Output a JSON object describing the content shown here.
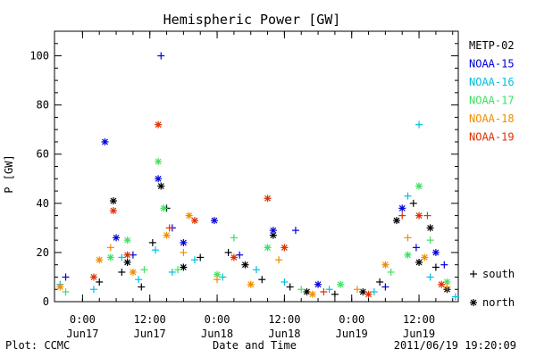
{
  "chart_data": {
    "type": "scatter",
    "title": "Hemispheric Power [GW]",
    "xlabel": "Date and Time",
    "ylabel": "P [GW]",
    "ylim": [
      0,
      110
    ],
    "xlim": [
      "2011-06-16 19:00",
      "2011-06-19 19:00"
    ],
    "y_ticks": [
      0,
      20,
      40,
      60,
      80,
      100
    ],
    "x_ticks": [
      {
        "time": "2011-06-17 00:00",
        "line1": "0:00",
        "line2": "Jun17"
      },
      {
        "time": "2011-06-17 12:00",
        "line1": "12:00",
        "line2": "Jun17"
      },
      {
        "time": "2011-06-18 00:00",
        "line1": "0:00",
        "line2": "Jun18"
      },
      {
        "time": "2011-06-18 12:00",
        "line1": "12:00",
        "line2": "Jun18"
      },
      {
        "time": "2011-06-19 00:00",
        "line1": "0:00",
        "line2": "Jun19"
      },
      {
        "time": "2011-06-19 12:00",
        "line1": "12:00",
        "line2": "Jun19"
      }
    ],
    "grid": false,
    "legend_placement": "right",
    "markers_legend": [
      {
        "symbol": "+",
        "label": "south"
      },
      {
        "symbol": "*",
        "label": "north"
      }
    ],
    "series": [
      {
        "name": "METP-02",
        "color": "#000000",
        "points": [
          {
            "x": "2011-06-17 03:00",
            "y": 8,
            "m": "+"
          },
          {
            "x": "2011-06-17 05:30",
            "y": 41,
            "m": "*"
          },
          {
            "x": "2011-06-17 07:00",
            "y": 12,
            "m": "+"
          },
          {
            "x": "2011-06-17 08:00",
            "y": 16,
            "m": "*"
          },
          {
            "x": "2011-06-17 10:30",
            "y": 6,
            "m": "+"
          },
          {
            "x": "2011-06-17 12:30",
            "y": 24,
            "m": "+"
          },
          {
            "x": "2011-06-17 14:00",
            "y": 47,
            "m": "*"
          },
          {
            "x": "2011-06-17 15:00",
            "y": 38,
            "m": "+"
          },
          {
            "x": "2011-06-17 18:00",
            "y": 14,
            "m": "*"
          },
          {
            "x": "2011-06-17 21:00",
            "y": 18,
            "m": "+"
          },
          {
            "x": "2011-06-18 02:00",
            "y": 20,
            "m": "+"
          },
          {
            "x": "2011-06-18 05:00",
            "y": 15,
            "m": "*"
          },
          {
            "x": "2011-06-18 08:00",
            "y": 9,
            "m": "+"
          },
          {
            "x": "2011-06-18 10:00",
            "y": 27,
            "m": "*"
          },
          {
            "x": "2011-06-18 13:00",
            "y": 6,
            "m": "+"
          },
          {
            "x": "2011-06-18 16:00",
            "y": 4,
            "m": "*"
          },
          {
            "x": "2011-06-18 21:00",
            "y": 3,
            "m": "+"
          },
          {
            "x": "2011-06-19 02:00",
            "y": 4,
            "m": "*"
          },
          {
            "x": "2011-06-19 05:00",
            "y": 8,
            "m": "+"
          },
          {
            "x": "2011-06-19 08:00",
            "y": 33,
            "m": "*"
          },
          {
            "x": "2011-06-19 11:00",
            "y": 40,
            "m": "+"
          },
          {
            "x": "2011-06-19 12:00",
            "y": 16,
            "m": "*"
          },
          {
            "x": "2011-06-19 14:00",
            "y": 30,
            "m": "*"
          },
          {
            "x": "2011-06-19 15:00",
            "y": 14,
            "m": "+"
          },
          {
            "x": "2011-06-19 17:00",
            "y": 5,
            "m": "*"
          }
        ]
      },
      {
        "name": "NOAA-15",
        "color": "#0000dd",
        "points": [
          {
            "x": "2011-06-16 21:00",
            "y": 10,
            "m": "+"
          },
          {
            "x": "2011-06-17 04:00",
            "y": 65,
            "m": "*"
          },
          {
            "x": "2011-06-17 06:00",
            "y": 26,
            "m": "*"
          },
          {
            "x": "2011-06-17 09:00",
            "y": 19,
            "m": "+"
          },
          {
            "x": "2011-06-17 14:00",
            "y": 100,
            "m": "+"
          },
          {
            "x": "2011-06-17 13:30",
            "y": 50,
            "m": "*"
          },
          {
            "x": "2011-06-17 16:00",
            "y": 30,
            "m": "+"
          },
          {
            "x": "2011-06-17 18:00",
            "y": 24,
            "m": "*"
          },
          {
            "x": "2011-06-17 23:30",
            "y": 33,
            "m": "*"
          },
          {
            "x": "2011-06-18 04:00",
            "y": 19,
            "m": "+"
          },
          {
            "x": "2011-06-18 10:00",
            "y": 29,
            "m": "*"
          },
          {
            "x": "2011-06-18 14:00",
            "y": 29,
            "m": "+"
          },
          {
            "x": "2011-06-18 18:00",
            "y": 7,
            "m": "*"
          },
          {
            "x": "2011-06-19 06:00",
            "y": 6,
            "m": "+"
          },
          {
            "x": "2011-06-19 09:00",
            "y": 38,
            "m": "*"
          },
          {
            "x": "2011-06-19 11:30",
            "y": 22,
            "m": "+"
          },
          {
            "x": "2011-06-19 15:00",
            "y": 20,
            "m": "*"
          },
          {
            "x": "2011-06-19 16:30",
            "y": 15,
            "m": "+"
          }
        ]
      },
      {
        "name": "NOAA-16",
        "color": "#00c0e0",
        "points": [
          {
            "x": "2011-06-16 20:00",
            "y": 7,
            "m": "+"
          },
          {
            "x": "2011-06-17 02:00",
            "y": 5,
            "m": "+"
          },
          {
            "x": "2011-06-17 07:00",
            "y": 18,
            "m": "+"
          },
          {
            "x": "2011-06-17 10:00",
            "y": 9,
            "m": "+"
          },
          {
            "x": "2011-06-17 13:00",
            "y": 21,
            "m": "+"
          },
          {
            "x": "2011-06-17 16:00",
            "y": 12,
            "m": "+"
          },
          {
            "x": "2011-06-17 20:00",
            "y": 17,
            "m": "+"
          },
          {
            "x": "2011-06-18 01:00",
            "y": 10,
            "m": "+"
          },
          {
            "x": "2011-06-18 07:00",
            "y": 13,
            "m": "+"
          },
          {
            "x": "2011-06-18 12:00",
            "y": 8,
            "m": "+"
          },
          {
            "x": "2011-06-18 20:00",
            "y": 5,
            "m": "+"
          },
          {
            "x": "2011-06-19 04:00",
            "y": 4,
            "m": "+"
          },
          {
            "x": "2011-06-19 10:00",
            "y": 43,
            "m": "+"
          },
          {
            "x": "2011-06-19 12:00",
            "y": 72,
            "m": "+"
          },
          {
            "x": "2011-06-19 14:00",
            "y": 10,
            "m": "+"
          },
          {
            "x": "2011-06-19 18:30",
            "y": 2,
            "m": "+"
          }
        ]
      },
      {
        "name": "NOAA-17",
        "color": "#40e060",
        "points": [
          {
            "x": "2011-06-16 21:00",
            "y": 4,
            "m": "+"
          },
          {
            "x": "2011-06-17 05:00",
            "y": 18,
            "m": "*"
          },
          {
            "x": "2011-06-17 08:00",
            "y": 25,
            "m": "*"
          },
          {
            "x": "2011-06-17 11:00",
            "y": 13,
            "m": "+"
          },
          {
            "x": "2011-06-17 13:30",
            "y": 57,
            "m": "*"
          },
          {
            "x": "2011-06-17 14:30",
            "y": 38,
            "m": "*"
          },
          {
            "x": "2011-06-17 17:00",
            "y": 13,
            "m": "+"
          },
          {
            "x": "2011-06-18 00:00",
            "y": 11,
            "m": "*"
          },
          {
            "x": "2011-06-18 03:00",
            "y": 26,
            "m": "+"
          },
          {
            "x": "2011-06-18 09:00",
            "y": 22,
            "m": "*"
          },
          {
            "x": "2011-06-18 15:00",
            "y": 5,
            "m": "+"
          },
          {
            "x": "2011-06-18 22:00",
            "y": 7,
            "m": "*"
          },
          {
            "x": "2011-06-19 07:00",
            "y": 12,
            "m": "+"
          },
          {
            "x": "2011-06-19 10:00",
            "y": 19,
            "m": "*"
          },
          {
            "x": "2011-06-19 12:00",
            "y": 47,
            "m": "*"
          },
          {
            "x": "2011-06-19 14:00",
            "y": 25,
            "m": "+"
          },
          {
            "x": "2011-06-19 17:00",
            "y": 8,
            "m": "*"
          }
        ]
      },
      {
        "name": "NOAA-18",
        "color": "#f08c00",
        "points": [
          {
            "x": "2011-06-16 20:00",
            "y": 6,
            "m": "*"
          },
          {
            "x": "2011-06-17 03:00",
            "y": 17,
            "m": "*"
          },
          {
            "x": "2011-06-17 05:00",
            "y": 22,
            "m": "+"
          },
          {
            "x": "2011-06-17 09:00",
            "y": 12,
            "m": "*"
          },
          {
            "x": "2011-06-17 15:00",
            "y": 27,
            "m": "*"
          },
          {
            "x": "2011-06-17 18:00",
            "y": 20,
            "m": "+"
          },
          {
            "x": "2011-06-17 19:00",
            "y": 35,
            "m": "*"
          },
          {
            "x": "2011-06-18 00:00",
            "y": 9,
            "m": "+"
          },
          {
            "x": "2011-06-18 06:00",
            "y": 7,
            "m": "*"
          },
          {
            "x": "2011-06-18 11:00",
            "y": 17,
            "m": "+"
          },
          {
            "x": "2011-06-18 17:00",
            "y": 3,
            "m": "*"
          },
          {
            "x": "2011-06-19 01:00",
            "y": 5,
            "m": "+"
          },
          {
            "x": "2011-06-19 06:00",
            "y": 15,
            "m": "*"
          },
          {
            "x": "2011-06-19 10:00",
            "y": 26,
            "m": "+"
          },
          {
            "x": "2011-06-19 13:00",
            "y": 18,
            "m": "*"
          },
          {
            "x": "2011-06-19 17:00",
            "y": 6,
            "m": "+"
          }
        ]
      },
      {
        "name": "NOAA-19",
        "color": "#e03000",
        "points": [
          {
            "x": "2011-06-17 02:00",
            "y": 10,
            "m": "*"
          },
          {
            "x": "2011-06-17 05:30",
            "y": 37,
            "m": "*"
          },
          {
            "x": "2011-06-17 08:00",
            "y": 19,
            "m": "*"
          },
          {
            "x": "2011-06-17 13:30",
            "y": 72,
            "m": "*"
          },
          {
            "x": "2011-06-17 15:30",
            "y": 30,
            "m": "+"
          },
          {
            "x": "2011-06-17 20:00",
            "y": 33,
            "m": "*"
          },
          {
            "x": "2011-06-18 03:00",
            "y": 18,
            "m": "*"
          },
          {
            "x": "2011-06-18 09:00",
            "y": 42,
            "m": "*"
          },
          {
            "x": "2011-06-18 12:00",
            "y": 22,
            "m": "*"
          },
          {
            "x": "2011-06-18 19:00",
            "y": 4,
            "m": "+"
          },
          {
            "x": "2011-06-19 03:00",
            "y": 3,
            "m": "*"
          },
          {
            "x": "2011-06-19 09:00",
            "y": 35,
            "m": "+"
          },
          {
            "x": "2011-06-19 12:00",
            "y": 35,
            "m": "*"
          },
          {
            "x": "2011-06-19 13:30",
            "y": 35,
            "m": "+"
          },
          {
            "x": "2011-06-19 16:00",
            "y": 7,
            "m": "*"
          }
        ]
      }
    ]
  },
  "footer": {
    "left": "Plot: CCMC",
    "right": "2011/06/19 19:20:09"
  }
}
